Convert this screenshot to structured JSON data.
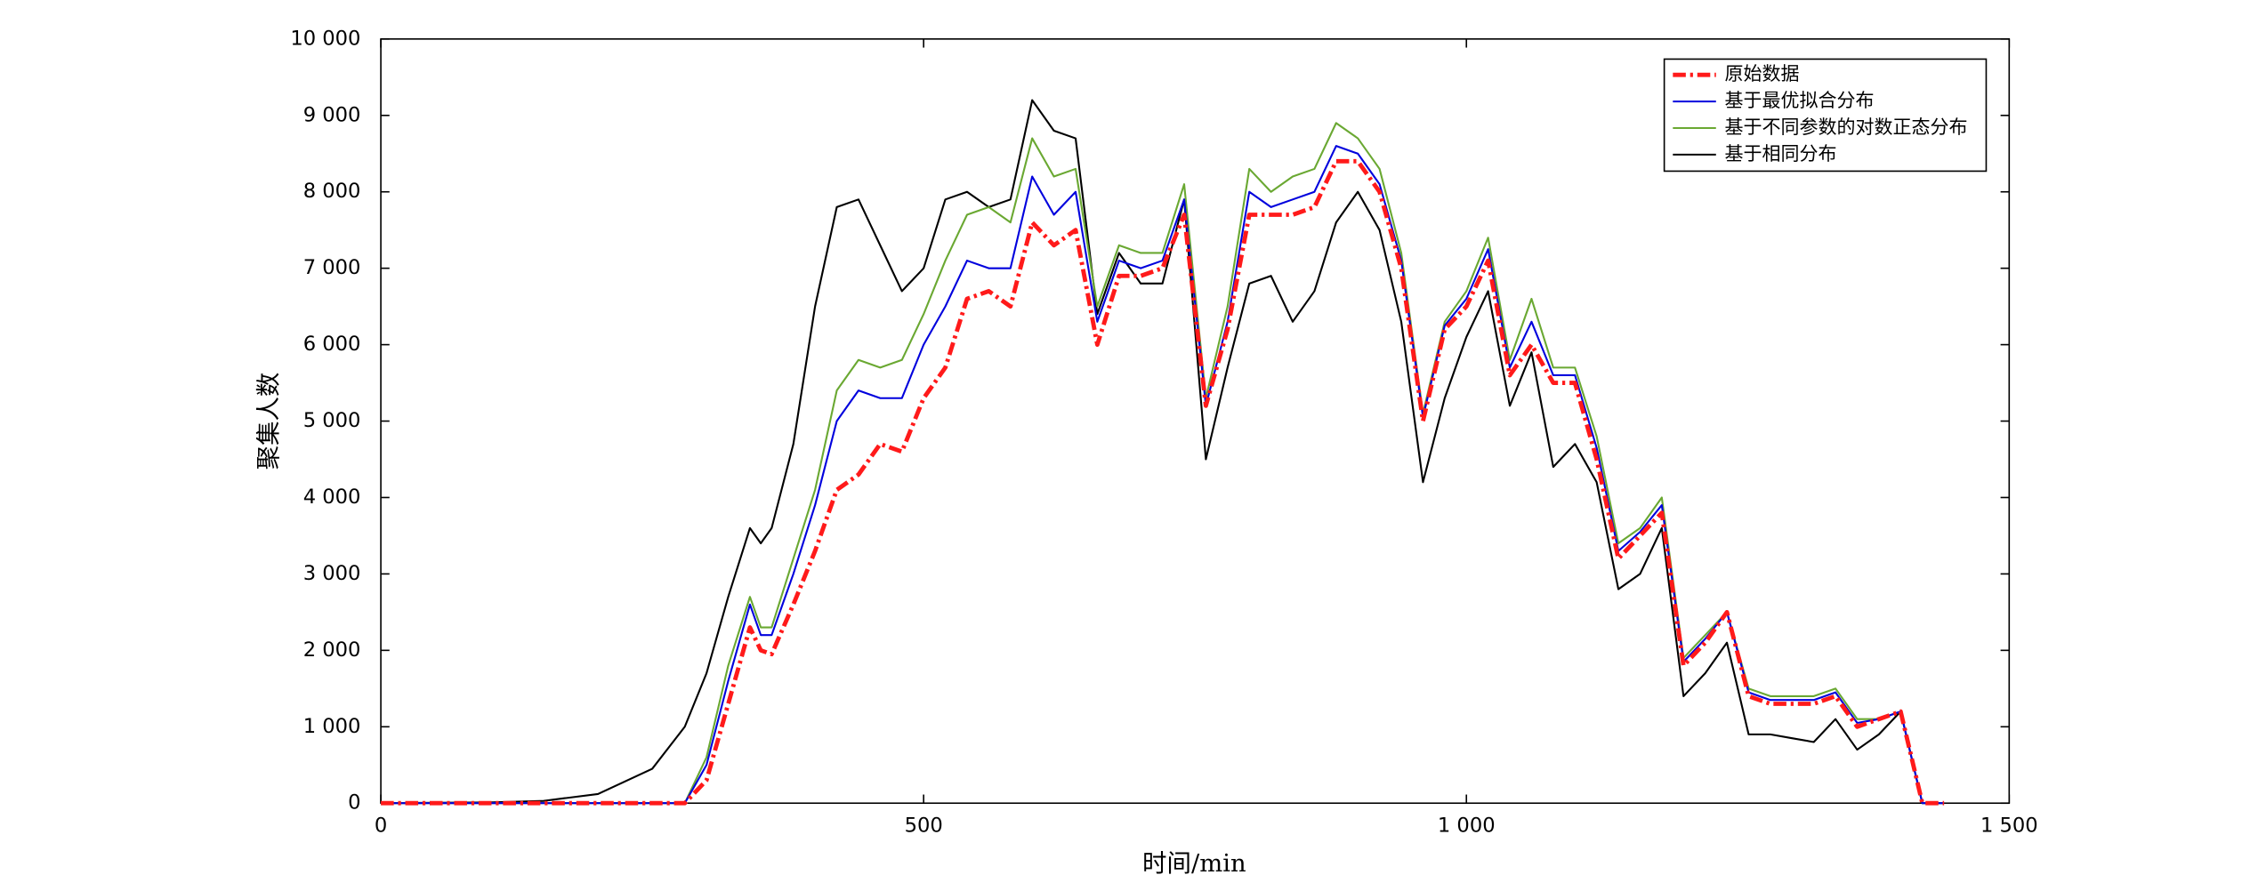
{
  "chart_data": {
    "type": "line",
    "x_label": "时间/min",
    "y_label": "聚集人数",
    "x": [
      0,
      100,
      150,
      200,
      250,
      280,
      300,
      320,
      340,
      350,
      360,
      380,
      400,
      420,
      440,
      460,
      480,
      500,
      520,
      540,
      560,
      580,
      600,
      620,
      640,
      660,
      680,
      700,
      720,
      740,
      760,
      780,
      800,
      820,
      840,
      860,
      880,
      900,
      920,
      940,
      960,
      980,
      1000,
      1020,
      1040,
      1060,
      1080,
      1100,
      1120,
      1140,
      1160,
      1180,
      1200,
      1220,
      1240,
      1260,
      1280,
      1300,
      1320,
      1340,
      1360,
      1380,
      1400,
      1420,
      1440
    ],
    "series": [
      {
        "name": "原始数据",
        "color": "#ff1a1a",
        "dash": "dashdot",
        "values": [
          0,
          0,
          0,
          0,
          0,
          0,
          300,
          1300,
          2300,
          2000,
          1950,
          2600,
          3300,
          4100,
          4300,
          4700,
          4600,
          5300,
          5700,
          6600,
          6700,
          6500,
          7600,
          7300,
          7500,
          6000,
          6900,
          6900,
          7000,
          7700,
          5200,
          6200,
          7700,
          7700,
          7700,
          7800,
          8400,
          8400,
          8000,
          7000,
          5000,
          6200,
          6500,
          7100,
          5600,
          6000,
          5500,
          5500,
          4500,
          3200,
          3500,
          3800,
          1800,
          2100,
          2500,
          1400,
          1300,
          1300,
          1300,
          1400,
          1000,
          1100,
          1200,
          0,
          0
        ]
      },
      {
        "name": "基于最优拟合分布",
        "color": "#0000dd",
        "values": [
          0,
          0,
          0,
          0,
          0,
          0,
          500,
          1600,
          2600,
          2200,
          2200,
          3000,
          3900,
          5000,
          5400,
          5300,
          5300,
          6000,
          6500,
          7100,
          7000,
          7000,
          8200,
          7700,
          8000,
          6300,
          7100,
          7000,
          7100,
          7900,
          5200,
          6300,
          8000,
          7800,
          7900,
          8000,
          8600,
          8500,
          8100,
          7100,
          5050,
          6250,
          6600,
          7250,
          5700,
          6300,
          5600,
          5600,
          4650,
          3300,
          3550,
          3900,
          1850,
          2150,
          2500,
          1450,
          1350,
          1350,
          1350,
          1450,
          1050,
          1100,
          1200,
          0,
          0
        ]
      },
      {
        "name": "基于不同参数的对数正态分布",
        "color": "#6aa832",
        "values": [
          0,
          0,
          0,
          0,
          0,
          0,
          600,
          1800,
          2700,
          2300,
          2300,
          3200,
          4100,
          5400,
          5800,
          5700,
          5800,
          6400,
          7100,
          7700,
          7800,
          7600,
          8700,
          8200,
          8300,
          6500,
          7300,
          7200,
          7200,
          8100,
          5300,
          6500,
          8300,
          8000,
          8200,
          8300,
          8900,
          8700,
          8300,
          7200,
          5100,
          6300,
          6700,
          7400,
          5800,
          6600,
          5700,
          5700,
          4800,
          3400,
          3600,
          4000,
          1900,
          2200,
          2500,
          1500,
          1400,
          1400,
          1400,
          1500,
          1100,
          1100,
          1200,
          0,
          0
        ]
      },
      {
        "name": "基于相同分布",
        "color": "#000000",
        "values": [
          0,
          10,
          30,
          120,
          450,
          1000,
          1700,
          2700,
          3600,
          3400,
          3600,
          4700,
          6500,
          7800,
          7900,
          7300,
          6700,
          7000,
          7900,
          8000,
          7800,
          7900,
          9200,
          8800,
          8700,
          6400,
          7200,
          6800,
          6800,
          7900,
          4500,
          5700,
          6800,
          6900,
          6300,
          6700,
          7600,
          8000,
          7500,
          6300,
          4200,
          5300,
          6100,
          6700,
          5200,
          5900,
          4400,
          4700,
          4200,
          2800,
          3000,
          3600,
          1400,
          1700,
          2100,
          900,
          900,
          850,
          800,
          1100,
          700,
          900,
          1200,
          0,
          0
        ]
      }
    ],
    "xlim": [
      0,
      1500
    ],
    "xticks": [
      0,
      500,
      {
        "value": 1000,
        "label": "1 000"
      },
      {
        "value": 1500,
        "label": "1 500"
      }
    ],
    "ylim": [
      0,
      10000
    ],
    "yticks": [
      0,
      {
        "value": 1000,
        "label": "1 000"
      },
      {
        "value": 2000,
        "label": "2 000"
      },
      {
        "value": 3000,
        "label": "3 000"
      },
      {
        "value": 4000,
        "label": "4 000"
      },
      {
        "value": 5000,
        "label": "5 000"
      },
      {
        "value": 6000,
        "label": "6 000"
      },
      {
        "value": 7000,
        "label": "7 000"
      },
      {
        "value": 8000,
        "label": "8 000"
      },
      {
        "value": 9000,
        "label": "9 000"
      },
      {
        "value": 10000,
        "label": "10 000"
      }
    ],
    "grid": false,
    "legend": "upper right"
  }
}
